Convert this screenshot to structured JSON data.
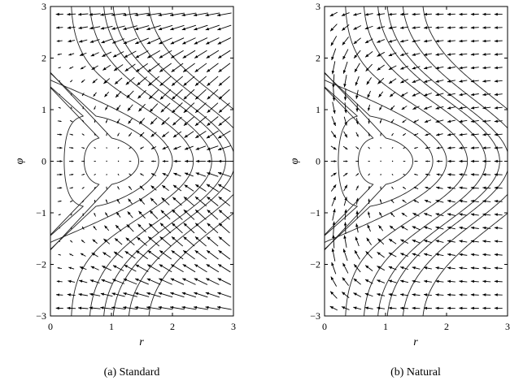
{
  "chart_data": [
    {
      "type": "quiver",
      "id": "standard",
      "caption": "(a) Standard",
      "xlabel": "r",
      "ylabel": "φ",
      "xlim": [
        0,
        3
      ],
      "ylim": [
        -3,
        3
      ],
      "xticks": [
        "0",
        "1",
        "2",
        "3"
      ],
      "yticks": [
        "−3",
        "−2",
        "−1",
        "0",
        "1",
        "2",
        "3"
      ],
      "grid": false,
      "field": "standard-gradient",
      "contour_levels": [
        0.1,
        0.3,
        0.5,
        0.9,
        1.35,
        1.75,
        2.05
      ],
      "center": [
        1.0,
        0.0
      ]
    },
    {
      "type": "quiver",
      "id": "natural",
      "caption": "(b) Natural",
      "xlabel": "r",
      "ylabel": "φ",
      "xlim": [
        0,
        3
      ],
      "ylim": [
        -3,
        3
      ],
      "xticks": [
        "0",
        "1",
        "2",
        "3"
      ],
      "yticks": [
        "−3",
        "−2",
        "−1",
        "0",
        "1",
        "2",
        "3"
      ],
      "grid": false,
      "field": "natural-gradient",
      "contour_levels": [
        0.1,
        0.3,
        0.5,
        0.9,
        1.35,
        1.75,
        2.05
      ],
      "center": [
        1.0,
        0.0
      ]
    }
  ]
}
